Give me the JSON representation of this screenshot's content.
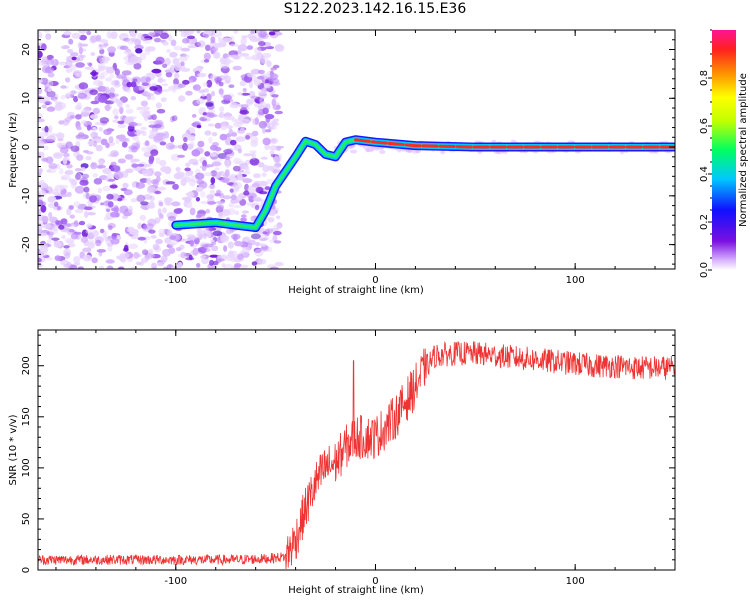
{
  "title": "S122.2023.142.16.15.E36",
  "chart_data": [
    {
      "type": "heatmap",
      "xlabel": "Height of straight line (km)",
      "ylabel": "Frequency (Hz)",
      "xlim": [
        -169,
        150
      ],
      "ylim": [
        -25,
        24
      ],
      "x_ticks": [
        -100,
        0,
        100
      ],
      "y_ticks": [
        -20,
        -10,
        0,
        10,
        20
      ],
      "ridge": [
        {
          "x": -100,
          "y": -16
        },
        {
          "x": -80,
          "y": -15.5
        },
        {
          "x": -70,
          "y": -16
        },
        {
          "x": -60,
          "y": -16.5
        },
        {
          "x": -55,
          "y": -13
        },
        {
          "x": -50,
          "y": -8
        },
        {
          "x": -45,
          "y": -5
        },
        {
          "x": -40,
          "y": -2
        },
        {
          "x": -35,
          "y": 1.2
        },
        {
          "x": -30,
          "y": 0.5
        },
        {
          "x": -25,
          "y": -1.5
        },
        {
          "x": -20,
          "y": -2
        },
        {
          "x": -15,
          "y": 1
        },
        {
          "x": -10,
          "y": 1.5
        },
        {
          "x": 0,
          "y": 1
        },
        {
          "x": 20,
          "y": 0.3
        },
        {
          "x": 50,
          "y": 0
        },
        {
          "x": 100,
          "y": 0
        },
        {
          "x": 150,
          "y": 0
        }
      ],
      "noise_region_x": [
        -169,
        -52
      ],
      "colorbar": {
        "label": "Normalized spectral amplitude",
        "range": [
          0,
          1
        ],
        "ticks": [
          0.0,
          0.2,
          0.4,
          0.6,
          0.8
        ],
        "tick_labels": [
          "0.0",
          "0.2",
          "0.4",
          "0.6",
          "0.8"
        ]
      }
    },
    {
      "type": "line",
      "xlabel": "Height of straight line (km)",
      "ylabel": "SNR (10 * v/v)",
      "xlim": [
        -169,
        150
      ],
      "ylim": [
        0,
        235
      ],
      "x_ticks": [
        -100,
        0,
        100
      ],
      "y_ticks": [
        0,
        50,
        100,
        150,
        200
      ],
      "color": "#ee3333",
      "series": [
        {
          "x": [
            -169,
            -150,
            -130,
            -110,
            -90,
            -70,
            -55,
            -45,
            -40,
            -35,
            -30,
            -25,
            -20,
            -15,
            -10,
            -5,
            0,
            5,
            10,
            15,
            20,
            25,
            30,
            40,
            50,
            60,
            70,
            80,
            90,
            100,
            110,
            120,
            130,
            140,
            150
          ],
          "values": [
            10,
            10,
            10,
            10,
            10,
            10,
            11,
            13,
            30,
            60,
            85,
            100,
            105,
            120,
            130,
            130,
            130,
            140,
            150,
            165,
            180,
            198,
            210,
            212,
            212,
            210,
            208,
            206,
            204,
            202,
            200,
            200,
            198,
            198,
            198
          ]
        }
      ],
      "spike": {
        "x": -11,
        "y": 205
      }
    }
  ]
}
